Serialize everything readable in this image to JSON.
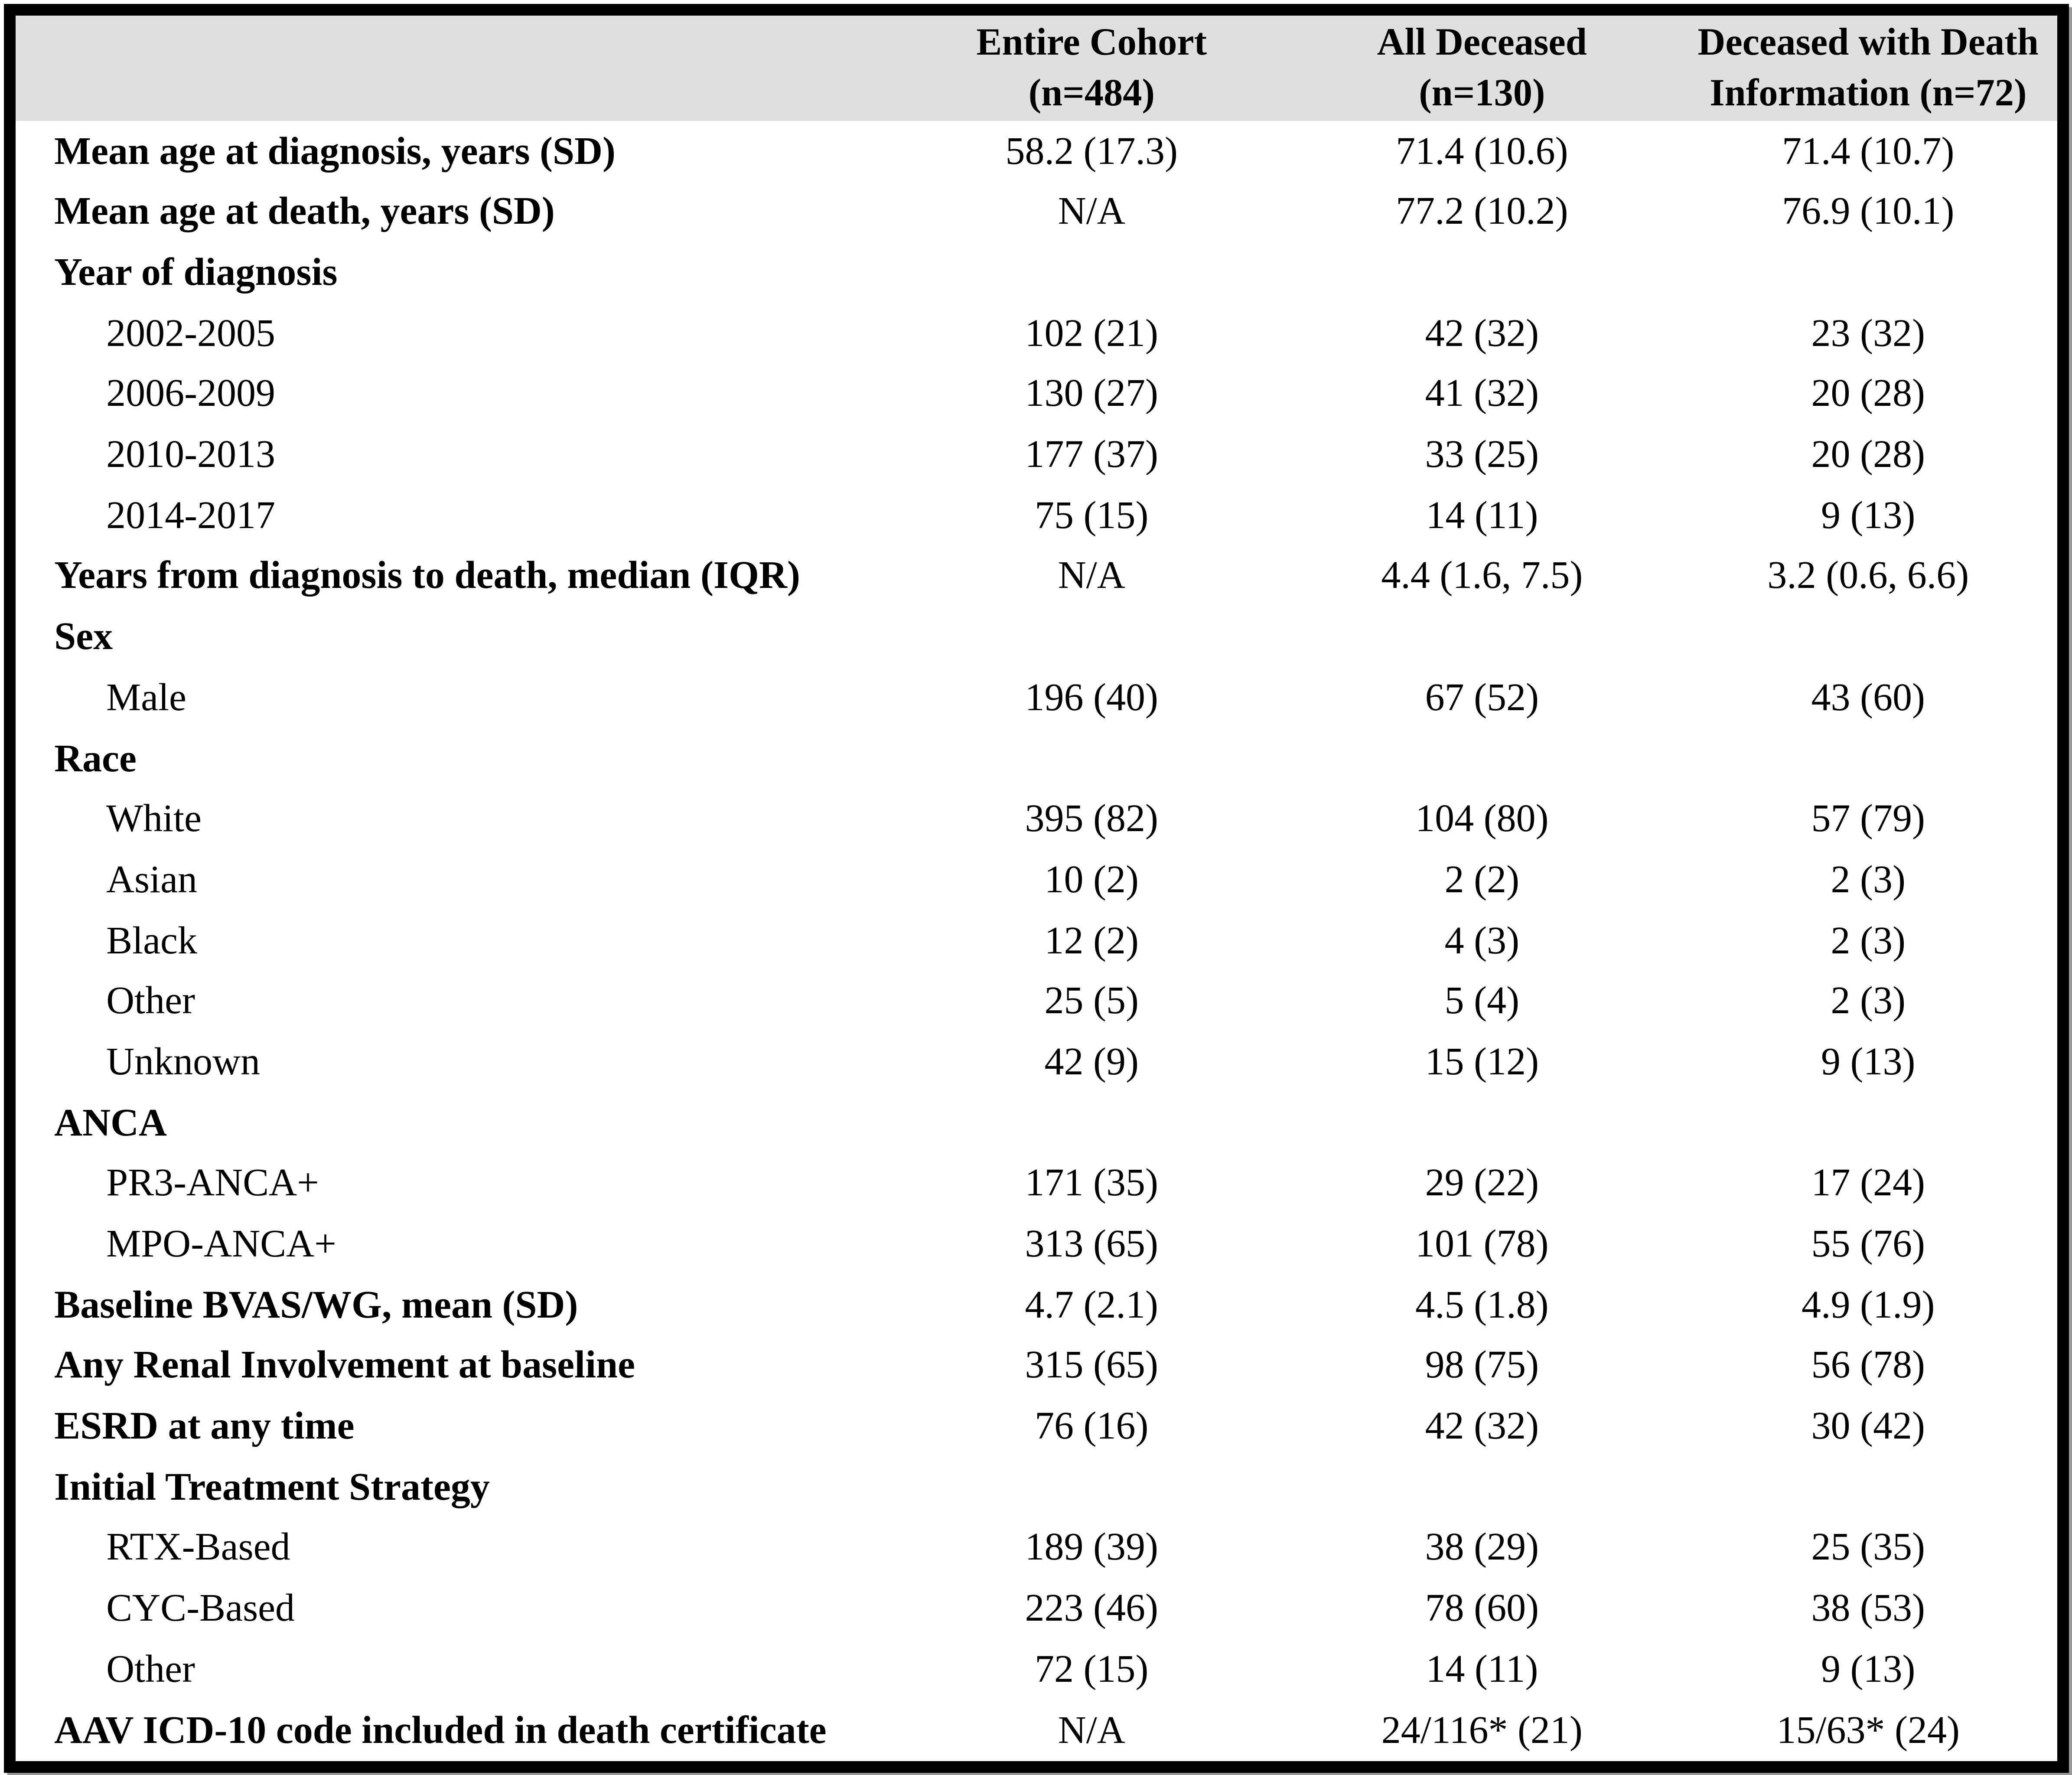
{
  "colors": {
    "header_bg": "#dfdfdf",
    "border": "#000000",
    "shadow": "#999999"
  },
  "table": {
    "headers": [
      "Entire Cohort\n(n=484)",
      "All Deceased\n(n=130)",
      "Deceased with Death\nInformation (n=72)"
    ],
    "rows": [
      {
        "label": "Mean age at diagnosis, years (SD)",
        "style": "header",
        "values": [
          "58.2 (17.3)",
          "71.4 (10.6)",
          "71.4 (10.7)"
        ]
      },
      {
        "label": "Mean age at death, years (SD)",
        "style": "header",
        "values": [
          "N/A",
          "77.2 (10.2)",
          "76.9 (10.1)"
        ]
      },
      {
        "label": "Year of diagnosis",
        "style": "header",
        "values": [
          "",
          "",
          ""
        ]
      },
      {
        "label": "2002-2005",
        "style": "sub",
        "values": [
          "102 (21)",
          "42 (32)",
          "23 (32)"
        ]
      },
      {
        "label": "2006-2009",
        "style": "sub",
        "values": [
          "130 (27)",
          "41 (32)",
          "20 (28)"
        ]
      },
      {
        "label": "2010-2013",
        "style": "sub",
        "values": [
          "177 (37)",
          "33 (25)",
          "20 (28)"
        ]
      },
      {
        "label": "2014-2017",
        "style": "sub",
        "values": [
          "75 (15)",
          "14 (11)",
          "9 (13)"
        ]
      },
      {
        "label": "Years from diagnosis to death, median (IQR)",
        "style": "header",
        "values": [
          "N/A",
          "4.4 (1.6, 7.5)",
          "3.2 (0.6, 6.6)"
        ]
      },
      {
        "label": "Sex",
        "style": "header",
        "values": [
          "",
          "",
          ""
        ]
      },
      {
        "label": "Male",
        "style": "sub",
        "values": [
          "196 (40)",
          "67 (52)",
          "43 (60)"
        ]
      },
      {
        "label": "Race",
        "style": "header",
        "values": [
          "",
          "",
          ""
        ]
      },
      {
        "label": "White",
        "style": "sub",
        "values": [
          "395 (82)",
          "104 (80)",
          "57 (79)"
        ]
      },
      {
        "label": "Asian",
        "style": "sub",
        "values": [
          "10 (2)",
          "2 (2)",
          "2 (3)"
        ]
      },
      {
        "label": "Black",
        "style": "sub",
        "values": [
          "12 (2)",
          "4 (3)",
          "2 (3)"
        ]
      },
      {
        "label": "Other",
        "style": "sub",
        "values": [
          "25 (5)",
          "5 (4)",
          "2 (3)"
        ]
      },
      {
        "label": "Unknown",
        "style": "sub",
        "values": [
          "42 (9)",
          "15 (12)",
          "9 (13)"
        ]
      },
      {
        "label": "ANCA",
        "style": "header",
        "values": [
          "",
          "",
          ""
        ]
      },
      {
        "label": "PR3-ANCA+",
        "style": "sub",
        "values": [
          "171 (35)",
          "29 (22)",
          "17 (24)"
        ]
      },
      {
        "label": "MPO-ANCA+",
        "style": "sub",
        "values": [
          "313 (65)",
          "101 (78)",
          "55 (76)"
        ]
      },
      {
        "label": "Baseline BVAS/WG, mean (SD)",
        "style": "header",
        "values": [
          "4.7 (2.1)",
          "4.5 (1.8)",
          "4.9 (1.9)"
        ]
      },
      {
        "label": "Any Renal Involvement at baseline",
        "style": "header",
        "values": [
          "315 (65)",
          "98 (75)",
          "56 (78)"
        ]
      },
      {
        "label": "ESRD at any time",
        "style": "header",
        "values": [
          "76 (16)",
          "42 (32)",
          "30 (42)"
        ]
      },
      {
        "label": "Initial Treatment Strategy",
        "style": "header",
        "values": [
          "",
          "",
          ""
        ]
      },
      {
        "label": "RTX-Based",
        "style": "sub",
        "values": [
          "189 (39)",
          "38 (29)",
          "25 (35)"
        ]
      },
      {
        "label": "CYC-Based",
        "style": "sub",
        "values": [
          "223 (46)",
          "78 (60)",
          "38 (53)"
        ]
      },
      {
        "label": "Other",
        "style": "sub",
        "values": [
          "72 (15)",
          "14 (11)",
          "9 (13)"
        ]
      },
      {
        "label": "AAV ICD-10 code included in death certificate",
        "style": "header",
        "values": [
          "N/A",
          "24/116* (21)",
          "15/63* (24)"
        ]
      }
    ]
  }
}
